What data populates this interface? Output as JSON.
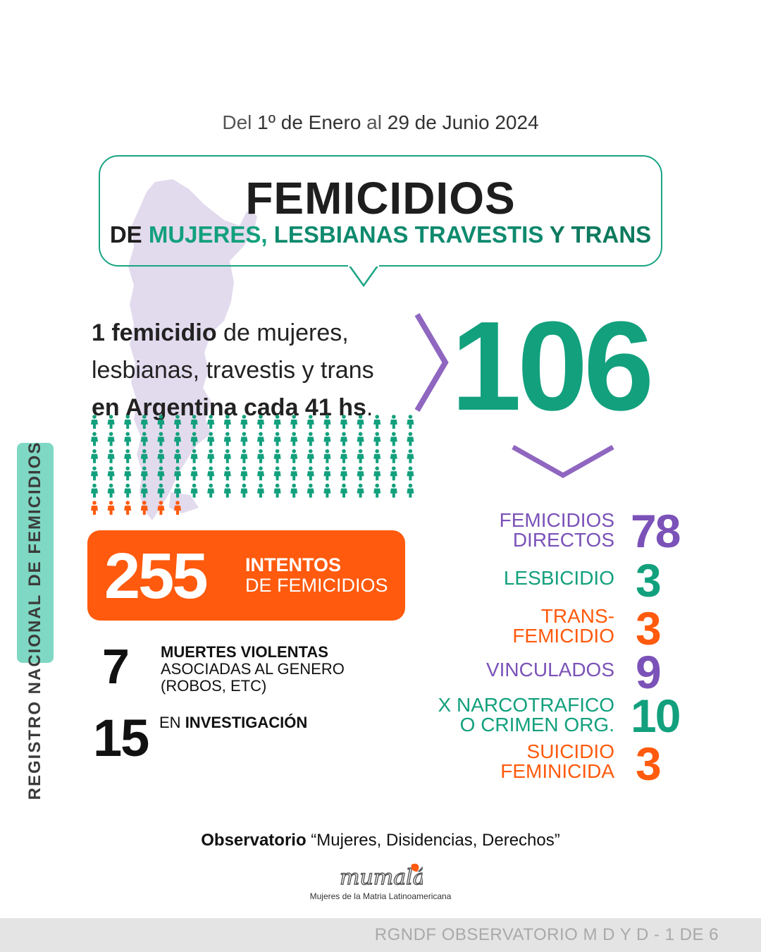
{
  "side_label": {
    "part1": "REGISTRO NACIONAL",
    "part2": "DE FEMICIDIOS"
  },
  "date_range": {
    "w1": "Del",
    "d1": "1º de Enero",
    "w2": "al",
    "d2": "29 de Junio 2024"
  },
  "title": {
    "main": "FEMICIDIOS",
    "de": "DE",
    "mujeres": "MUJERES,",
    "lesbianas": "LESBIANAS",
    "travestis": "TRAVESTIS",
    "y_trans": "Y TRANS"
  },
  "rate": {
    "b1": "1 femicidio",
    "t1": " de mujeres,",
    "t2": "lesbianas, travestis y trans",
    "b3": "en Argentina cada 41 hs",
    "t3": "."
  },
  "total": "106",
  "figures": {
    "green_count": 100,
    "orange_count": 6,
    "per_row": 20,
    "green_color": "#12a07d",
    "orange_color": "#ff5a0d"
  },
  "attempts": {
    "number": "255",
    "line1": "INTENTOS",
    "line2": "DE FEMICIDIOS"
  },
  "violent_deaths": {
    "number": "7",
    "line1": "MUERTES VIOLENTAS",
    "line2": "ASOCIADAS AL GENERO",
    "line3": "(ROBOS, ETC)"
  },
  "investigation": {
    "number": "15",
    "pre": "EN ",
    "bold": "INVESTIGACIÓN"
  },
  "breakdown": [
    {
      "line1": "FEMICIDIOS",
      "line2": "DIRECTOS",
      "value": "78",
      "color": "#7b52b8"
    },
    {
      "line1": "LESBICIDIO",
      "line2": "",
      "value": "3",
      "color": "#12a07d"
    },
    {
      "line1": "TRANS-",
      "line2": "FEMICIDIO",
      "value": "3",
      "color": "#ff5a0d"
    },
    {
      "line1": "VINCULADOS",
      "line2": "",
      "value": "9",
      "color": "#7b52b8"
    },
    {
      "line1": "X NARCOTRAFICO",
      "line2": "O CRIMEN ORG.",
      "value": "10",
      "color": "#12a07d"
    },
    {
      "line1": "SUICIDIO",
      "line2": "FEMINICIDA",
      "value": "3",
      "color": "#ff5a0d"
    }
  ],
  "footer": {
    "obs_bold": "Observatorio",
    "obs_rest": " “Mujeres, Disidencias, Derechos”",
    "logo_text": "mumalá",
    "logo_sub": "Mujeres de la Matria Latinoamericana",
    "bar_text": "RGNDF OBSERVATORIO M D Y D - 1 DE 6"
  },
  "colors": {
    "green": "#12a07d",
    "purple": "#7b52b8",
    "orange": "#ff5a0d",
    "map": "#e2dbee"
  }
}
